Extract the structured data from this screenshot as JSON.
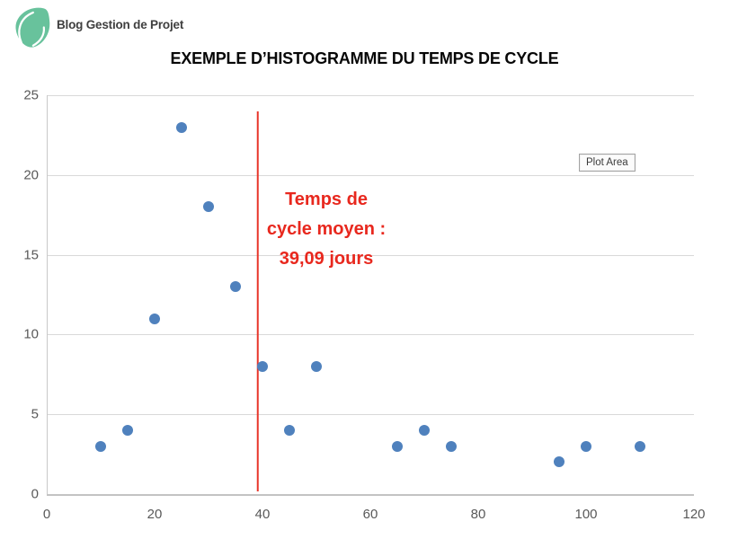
{
  "header": {
    "logo_text": "Blog Gestion de Projet",
    "logo_color": "#68c29c",
    "title": "EXEMPLE D’HISTOGRAMME DU TEMPS DE CYCLE"
  },
  "tooltip": {
    "label": "Plot Area"
  },
  "annotation": {
    "lines": [
      "Temps de",
      "cycle moyen :",
      "39,09 jours"
    ],
    "color": "#e8281e"
  },
  "chart_data": {
    "type": "scatter",
    "title": "EXEMPLE D’HISTOGRAMME DU TEMPS DE CYCLE",
    "xlabel": "",
    "ylabel": "",
    "xlim": [
      0,
      120
    ],
    "ylim": [
      0,
      25
    ],
    "x_ticks": [
      0,
      20,
      40,
      60,
      80,
      100,
      120
    ],
    "y_ticks": [
      0,
      5,
      10,
      15,
      20,
      25
    ],
    "grid": "horizontal",
    "legend": "none",
    "points": [
      {
        "x": 10,
        "y": 3
      },
      {
        "x": 15,
        "y": 4
      },
      {
        "x": 20,
        "y": 11
      },
      {
        "x": 25,
        "y": 23
      },
      {
        "x": 30,
        "y": 18
      },
      {
        "x": 35,
        "y": 13
      },
      {
        "x": 40,
        "y": 8
      },
      {
        "x": 45,
        "y": 4
      },
      {
        "x": 50,
        "y": 8
      },
      {
        "x": 65,
        "y": 3
      },
      {
        "x": 70,
        "y": 4
      },
      {
        "x": 75,
        "y": 3
      },
      {
        "x": 95,
        "y": 2
      },
      {
        "x": 100,
        "y": 3
      },
      {
        "x": 110,
        "y": 3
      }
    ],
    "mean_line_x": 39.09,
    "dot_color": "#4f81bd",
    "mean_line_color": "#e8362a"
  }
}
